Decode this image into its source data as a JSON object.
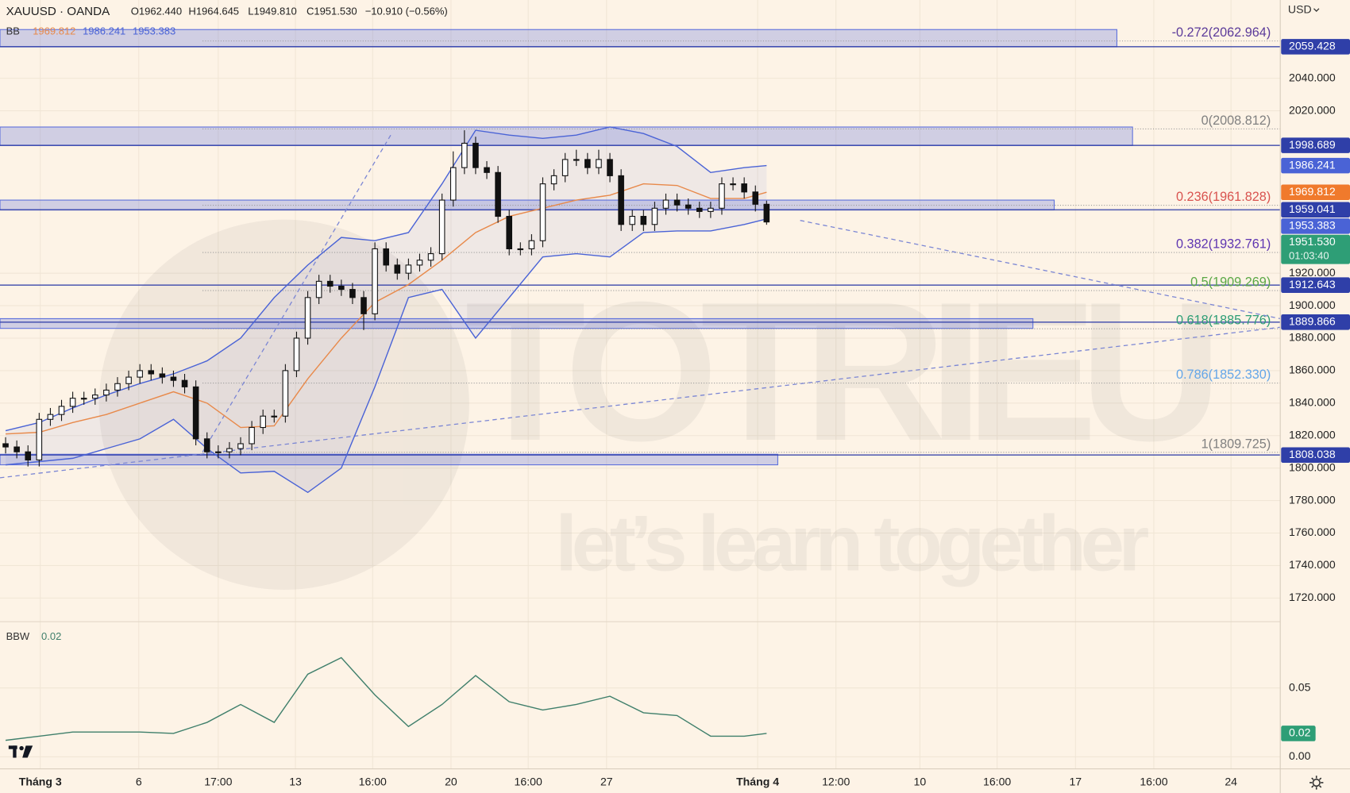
{
  "header": {
    "symbol": "XAUUSD · OANDA",
    "open": "O1962.440",
    "high": "H1964.645",
    "low": "L1949.810",
    "close": "C1951.530",
    "change": "−10.910 (−0.56%)",
    "currency": "USD"
  },
  "legend_bb": {
    "name": "BB",
    "middle": "1969.812",
    "upper": "1986.241",
    "lower": "1953.383"
  },
  "legend_bbw": {
    "name": "BBW",
    "value": "0.02"
  },
  "watermark": {
    "brand": "TOTRIEU",
    "slogan": "let’s learn together"
  },
  "chart_data": {
    "type": "candlestick",
    "xlim": [
      -0.5,
      113.9
    ],
    "ylim": [
      1706.5,
      2088.2
    ],
    "xticks": [
      {
        "value": 3.1,
        "label": "Tháng 3"
      },
      {
        "value": 11.9,
        "label": "6"
      },
      {
        "value": 19.0,
        "label": "17:00"
      },
      {
        "value": 25.9,
        "label": "13"
      },
      {
        "value": 32.8,
        "label": "16:00"
      },
      {
        "value": 39.8,
        "label": "20"
      },
      {
        "value": 46.7,
        "label": "16:00"
      },
      {
        "value": 53.7,
        "label": "27"
      },
      {
        "value": 67.2,
        "label": "Tháng 4"
      },
      {
        "value": 74.2,
        "label": "12:00"
      },
      {
        "value": 81.7,
        "label": "10"
      },
      {
        "value": 88.6,
        "label": "16:00"
      },
      {
        "value": 95.6,
        "label": "17"
      },
      {
        "value": 102.6,
        "label": "16:00"
      },
      {
        "value": 109.5,
        "label": "24"
      }
    ],
    "yticks": [
      {
        "value": 2040,
        "label": "2040.000"
      },
      {
        "value": 2020,
        "label": "2020.000"
      },
      {
        "value": 1920,
        "label": "1920.000"
      },
      {
        "value": 1900,
        "label": "1900.000"
      },
      {
        "value": 1880,
        "label": "1880.000"
      },
      {
        "value": 1860,
        "label": "1860.000"
      },
      {
        "value": 1840,
        "label": "1840.000"
      },
      {
        "value": 1820,
        "label": "1820.000"
      },
      {
        "value": 1800,
        "label": "1800.000"
      },
      {
        "value": 1780,
        "label": "1780.000"
      },
      {
        "value": 1760,
        "label": "1760.000"
      },
      {
        "value": 1740,
        "label": "1740.000"
      },
      {
        "value": 1720,
        "label": "1720.000"
      }
    ],
    "grid": true,
    "candles": {
      "up_color": "#ffffff",
      "down_color": "#111111",
      "open": [
        1815,
        1813,
        1810,
        1805,
        1830,
        1833,
        1838,
        1843,
        1843,
        1845,
        1848,
        1852,
        1856,
        1860,
        1858,
        1856,
        1854,
        1850,
        1818,
        1810,
        1810,
        1812,
        1815,
        1825,
        1832,
        1832,
        1860,
        1880,
        1905,
        1915,
        1912,
        1910,
        1905,
        1895,
        1935,
        1925,
        1920,
        1925,
        1928,
        1932,
        1965,
        1985,
        2000,
        1985,
        1982,
        1955,
        1935,
        1935,
        1940,
        1975,
        1980,
        1990,
        1990,
        1985,
        1990,
        1980,
        1950,
        1955,
        1950,
        1960,
        1965,
        1962,
        1960,
        1958,
        1960,
        1975,
        1975,
        1970,
        1962.44
      ],
      "high": [
        1819,
        1817,
        1814,
        1834,
        1837,
        1842,
        1847,
        1847,
        1849,
        1852,
        1856,
        1860,
        1864,
        1864,
        1862,
        1860,
        1858,
        1854,
        1822,
        1814,
        1816,
        1819,
        1829,
        1836,
        1836,
        1864,
        1884,
        1909,
        1919,
        1919,
        1916,
        1914,
        1909,
        1939,
        1939,
        1929,
        1929,
        1932,
        1936,
        1969,
        1995,
        2008,
        2004,
        1989,
        1986,
        1959,
        1939,
        1944,
        1979,
        1984,
        1994,
        1996,
        1994,
        1996,
        1994,
        1984,
        1959,
        1959,
        1964,
        1969,
        1969,
        1966,
        1964,
        1964,
        1979,
        1979,
        1979,
        1974,
        1964.645
      ],
      "low": [
        1809,
        1806,
        1801,
        1801,
        1826,
        1829,
        1834,
        1839,
        1839,
        1841,
        1844,
        1848,
        1852,
        1854,
        1852,
        1850,
        1846,
        1814,
        1806,
        1806,
        1806,
        1808,
        1811,
        1821,
        1828,
        1828,
        1856,
        1876,
        1901,
        1908,
        1906,
        1901,
        1885,
        1891,
        1921,
        1916,
        1916,
        1921,
        1924,
        1928,
        1961,
        1981,
        1981,
        1978,
        1951,
        1931,
        1931,
        1931,
        1936,
        1971,
        1976,
        1986,
        1981,
        1981,
        1976,
        1946,
        1946,
        1946,
        1946,
        1956,
        1958,
        1956,
        1954,
        1954,
        1956,
        1971,
        1966,
        1958,
        1949.81
      ],
      "close": [
        1813,
        1810,
        1805,
        1830,
        1833,
        1838,
        1843,
        1843,
        1845,
        1848,
        1852,
        1856,
        1860,
        1858,
        1856,
        1854,
        1850,
        1818,
        1810,
        1810,
        1812,
        1815,
        1825,
        1832,
        1832,
        1860,
        1880,
        1905,
        1915,
        1912,
        1910,
        1905,
        1895,
        1935,
        1925,
        1920,
        1925,
        1928,
        1932,
        1965,
        1985,
        2000,
        1985,
        1982,
        1955,
        1935,
        1935,
        1940,
        1975,
        1980,
        1990,
        1990,
        1985,
        1990,
        1980,
        1950,
        1955,
        1950,
        1960,
        1965,
        1962,
        1960,
        1958,
        1960,
        1975,
        1975,
        1970,
        1962.44,
        1951.53
      ]
    },
    "bands": {
      "x": [
        0,
        3,
        6,
        9,
        12,
        15,
        18,
        21,
        24,
        27,
        30,
        33,
        36,
        39,
        42,
        45,
        48,
        51,
        54,
        57,
        60,
        63,
        66,
        68
      ],
      "upper": [
        1823,
        1828,
        1837,
        1845,
        1852,
        1858,
        1866,
        1880,
        1905,
        1925,
        1942,
        1940,
        1945,
        1975,
        2008,
        2005,
        2003,
        2005,
        2010,
        2006,
        1998,
        1982,
        1985,
        1986.241
      ],
      "middle": [
        1821,
        1822,
        1828,
        1833,
        1840,
        1847,
        1840,
        1825,
        1826,
        1855,
        1880,
        1902,
        1913,
        1928,
        1945,
        1955,
        1960,
        1965,
        1968,
        1975,
        1974,
        1966,
        1966,
        1969.812
      ],
      "lower": [
        1802,
        1804,
        1806,
        1812,
        1818,
        1830,
        1812,
        1797,
        1798,
        1785,
        1800,
        1850,
        1905,
        1910,
        1880,
        1905,
        1930,
        1932,
        1930,
        1945,
        1946,
        1946,
        1950,
        1953.383
      ],
      "band_color": "#4a63d6",
      "middle_color": "#e8894a"
    },
    "zones": [
      {
        "top": 2070,
        "bottom": 2059.428,
        "end": 99.3
      },
      {
        "top": 2010,
        "bottom": 1998.689,
        "end": 100.7
      },
      {
        "top": 1965,
        "bottom": 1959.041,
        "end": 93.7
      },
      {
        "top": 1892,
        "bottom": 1886,
        "end": 91.8
      },
      {
        "top": 1808.5,
        "bottom": 1802,
        "end": 69.0
      }
    ],
    "fib_start": 17.6,
    "fib": [
      {
        "value": 2062.964,
        "label": "-0.272(2062.964)",
        "color": "#5b3a9a"
      },
      {
        "value": 2008.812,
        "label": "0(2008.812)",
        "color": "#808080"
      },
      {
        "value": 1961.828,
        "label": "0.236(1961.828)",
        "color": "#d9534f"
      },
      {
        "value": 1932.761,
        "label": "0.382(1932.761)",
        "color": "#5e35b1"
      },
      {
        "value": 1909.269,
        "label": "0.5(1909.269)",
        "color": "#5aa845"
      },
      {
        "value": 1885.776,
        "label": "0.618(1885.776)",
        "color": "#2e9e76"
      },
      {
        "value": 1852.33,
        "label": "0.786(1852.330)",
        "color": "#64a6e8"
      },
      {
        "value": 1809.725,
        "label": "1(1809.725)",
        "color": "#808080"
      }
    ],
    "trendlines": [
      {
        "x": [
          -0.5,
          113.9
        ],
        "y": [
          1794,
          1886.7
        ]
      },
      {
        "x": [
          17.6,
          34.5
        ],
        "y": [
          1809.9,
          2006
        ]
      },
      {
        "x": [
          71.0,
          113.9
        ],
        "y": [
          1952.5,
          1892
        ]
      }
    ],
    "price_labels": [
      {
        "value": 2059.428,
        "label": "2059.428",
        "color": "#2f3fa8",
        "line": true
      },
      {
        "value": 1998.689,
        "label": "1998.689",
        "color": "#2f3fa8",
        "line": true
      },
      {
        "value": 1986.241,
        "label": "1986.241",
        "color": "#4a63d6",
        "line": false
      },
      {
        "value": 1969.812,
        "label": "1969.812",
        "color": "#f07a2c",
        "line": false
      },
      {
        "value": 1959.041,
        "label": "1959.041",
        "color": "#2f3fa8",
        "line": true
      },
      {
        "value": 1953.383,
        "label": "1953.383",
        "color": "#4a63d6",
        "line": false
      },
      {
        "value": 1951.53,
        "label": "1951.530",
        "color": "#2e9e76",
        "line": false,
        "countdown": "01:03:40"
      },
      {
        "value": 1912.643,
        "label": "1912.643",
        "color": "#2f3fa8",
        "line": true
      },
      {
        "value": 1889.866,
        "label": "1889.866",
        "color": "#2f3fa8",
        "line": true
      },
      {
        "value": 1808.038,
        "label": "1808.038",
        "color": "#2f3fa8",
        "line": true
      }
    ],
    "bbw": {
      "x": [
        0,
        3,
        6,
        9,
        12,
        15,
        18,
        21,
        24,
        27,
        30,
        33,
        36,
        39,
        42,
        45,
        48,
        51,
        54,
        57,
        60,
        63,
        66,
        68
      ],
      "values": [
        0.012,
        0.015,
        0.018,
        0.018,
        0.018,
        0.017,
        0.025,
        0.038,
        0.025,
        0.06,
        0.072,
        0.045,
        0.022,
        0.038,
        0.059,
        0.04,
        0.034,
        0.038,
        0.044,
        0.032,
        0.03,
        0.015,
        0.015,
        0.017
      ],
      "color": "#3f7f6b",
      "y2lim": [
        -0.00875,
        0.09625
      ],
      "y2ticks": [
        0.05,
        {
          "value": 0,
          "label": "0.00"
        }
      ]
    }
  }
}
